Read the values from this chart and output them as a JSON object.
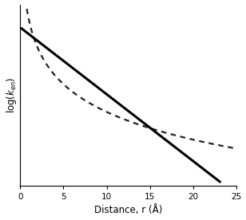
{
  "title": "",
  "xlabel": "Distance, r (Å)",
  "ylabel_display": "log($k_{en}$)",
  "xlim": [
    0,
    25
  ],
  "x_ticks": [
    0,
    5,
    10,
    15,
    20,
    25
  ],
  "background_color": "#ffffff",
  "dexter_color": "#000000",
  "forster_color": "#222222",
  "dexter_slope": -0.435,
  "dexter_intercept": 10.0,
  "forster_C": 8.5,
  "forster_power": 6,
  "figsize": [
    3.08,
    2.76
  ],
  "dpi": 100,
  "ylim": [
    -0.3,
    11.5
  ]
}
